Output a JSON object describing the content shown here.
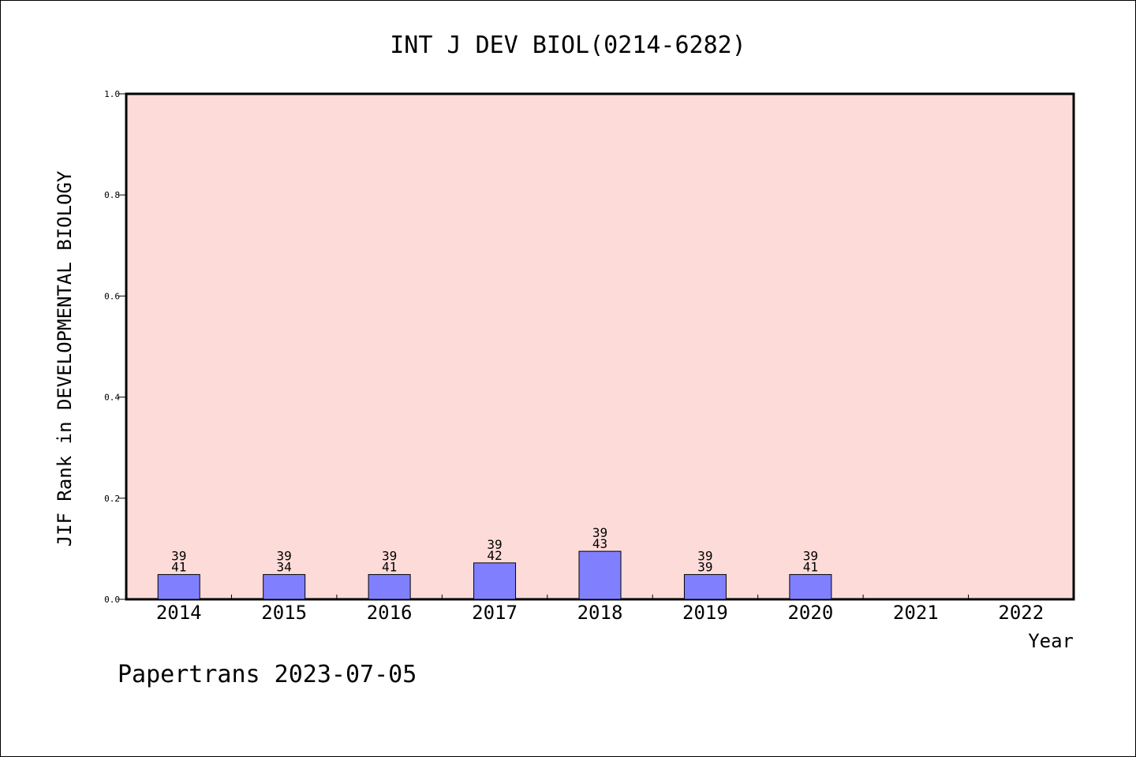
{
  "chart_data": {
    "type": "bar",
    "title": "INT J DEV BIOL(0214-6282)",
    "ylabel": "JIF Rank in DEVELOPMENTAL BIOLOGY",
    "xlabel": "Year",
    "ylim": [
      0,
      1.0
    ],
    "yticks": [
      "0.0",
      "0.2",
      "0.4",
      "0.6",
      "0.8",
      "1.0"
    ],
    "categories": [
      "2014",
      "2015",
      "2016",
      "2017",
      "2018",
      "2019",
      "2020",
      "2021",
      "2022"
    ],
    "values": [
      0.049,
      0.049,
      0.049,
      0.072,
      0.095,
      0.049,
      0.049,
      null,
      null
    ],
    "label_top": [
      "39",
      "39",
      "39",
      "39",
      "39",
      "39",
      "39",
      "",
      ""
    ],
    "label_bottom": [
      "41",
      "34",
      "41",
      "42",
      "43",
      "39",
      "41",
      "",
      ""
    ],
    "grid": false,
    "colors": {
      "plot_background": "#fddbd8",
      "bar_fill": "#8080ff",
      "axis": "#000000"
    }
  },
  "footer": {
    "text": "Papertrans 2023-07-05"
  }
}
